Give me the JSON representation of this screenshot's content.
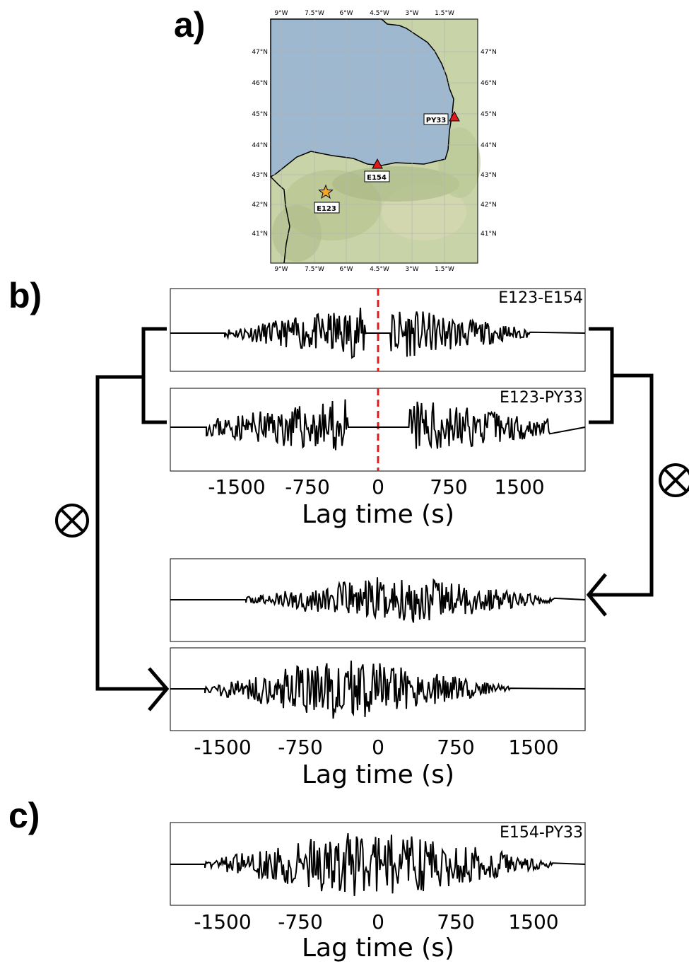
{
  "panel_labels": {
    "a": "a)",
    "b": "b)",
    "c": "c)"
  },
  "map": {
    "lon_ticks": [
      "9°W",
      "7.5°W",
      "6°W",
      "4.5°W",
      "3°W",
      "1.5°W"
    ],
    "lat_ticks": [
      "47°N",
      "46°N",
      "45°N",
      "44°N",
      "43°N",
      "42°N",
      "41°N"
    ],
    "stations": [
      {
        "name": "PY33",
        "symbol": "triangle",
        "color": "#e31a1c"
      },
      {
        "name": "E154",
        "symbol": "triangle",
        "color": "#e31a1c"
      },
      {
        "name": "E123",
        "symbol": "star",
        "color": "#f5a623"
      }
    ],
    "sea_color": "#9db8cf",
    "land_color": "#c9d3a8"
  },
  "panel_b": {
    "pair1_label": "E123-E154",
    "pair2_label": "E123-PY33",
    "xlabel": "Lag time (s)",
    "tick_labels": [
      "-1500",
      "-750",
      "0",
      "750",
      "1500"
    ],
    "operator_symbol": "⊗",
    "zero_line_color": "#e31a1c"
  },
  "panel_c": {
    "pair_label": "E154-PY33",
    "xlabel": "Lag time (s)",
    "tick_labels": [
      "-1500",
      "-750",
      "0",
      "750",
      "1500"
    ]
  }
}
